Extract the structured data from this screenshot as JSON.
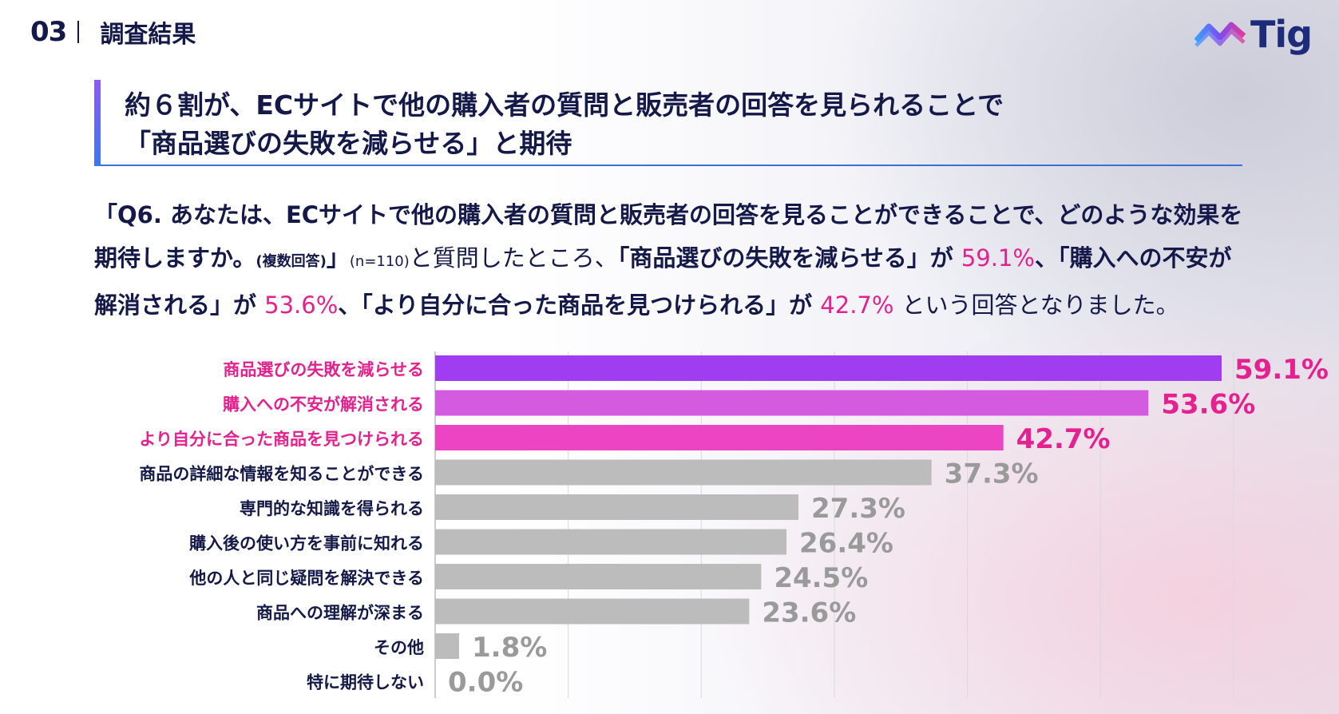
{
  "header": {
    "section_number": "03",
    "section_title": "調査結果"
  },
  "logo": {
    "text": "Tig"
  },
  "headline": {
    "line1": "約６割が、ECサイトで他の購入者の質問と販売者の回答を見られることで",
    "line2": "「商品選びの失敗を減らせる」と期待"
  },
  "lead": {
    "q": "「Q6. あなたは、ECサイトで他の購入者の質問と販売者の回答を見ることができることで、どのような効果を期待しますか。",
    "multi": "(複数回答)",
    "close": "」",
    "n": "(n=110)",
    "t1": "と質問したところ、",
    "a1": "「商品選びの失敗を減らせる」が",
    "p1": "59.1%",
    "a2": "、「購入への不安が解消される」が",
    "p2": "53.6%",
    "a3": "、「より自分に合った商品を見つけられる」が",
    "p3": "42.7%",
    "t2": "という回答となりました。"
  },
  "chart_data": {
    "type": "bar",
    "orientation": "horizontal",
    "categories": [
      "商品選びの失敗を減らせる",
      "購入への不安が解消される",
      "より自分に合った商品を見つけられる",
      "商品の詳細な情報を知ることができる",
      "専門的な知識を得られる",
      "購入後の使い方を事前に知れる",
      "他の人と同じ疑問を解決できる",
      "商品への理解が深まる",
      "その他",
      "特に期待しない"
    ],
    "values": [
      59.1,
      53.6,
      42.7,
      37.3,
      27.3,
      26.4,
      24.5,
      23.6,
      1.8,
      0.0
    ],
    "value_labels": [
      "59.1%",
      "53.6%",
      "42.7%",
      "37.3%",
      "27.3%",
      "26.4%",
      "24.5%",
      "23.6%",
      "1.8%",
      "0.0%"
    ],
    "highlight": [
      true,
      true,
      true,
      false,
      false,
      false,
      false,
      false,
      false,
      false
    ],
    "bar_colors": [
      "#a13df0",
      "#d45ae0",
      "#eb45c4",
      "#bcbcbc",
      "#bcbcbc",
      "#bcbcbc",
      "#bcbcbc",
      "#bcbcbc",
      "#bcbcbc",
      "#bcbcbc"
    ],
    "label_colors": {
      "highlight": "#e4218f",
      "normal": "#14194a",
      "value_normal": "#9a9a9a"
    },
    "xlim": [
      0,
      60
    ],
    "grid": true,
    "gridlines": [
      0,
      10,
      20,
      30,
      40,
      50,
      60
    ],
    "title": "",
    "xlabel": "",
    "ylabel": ""
  }
}
